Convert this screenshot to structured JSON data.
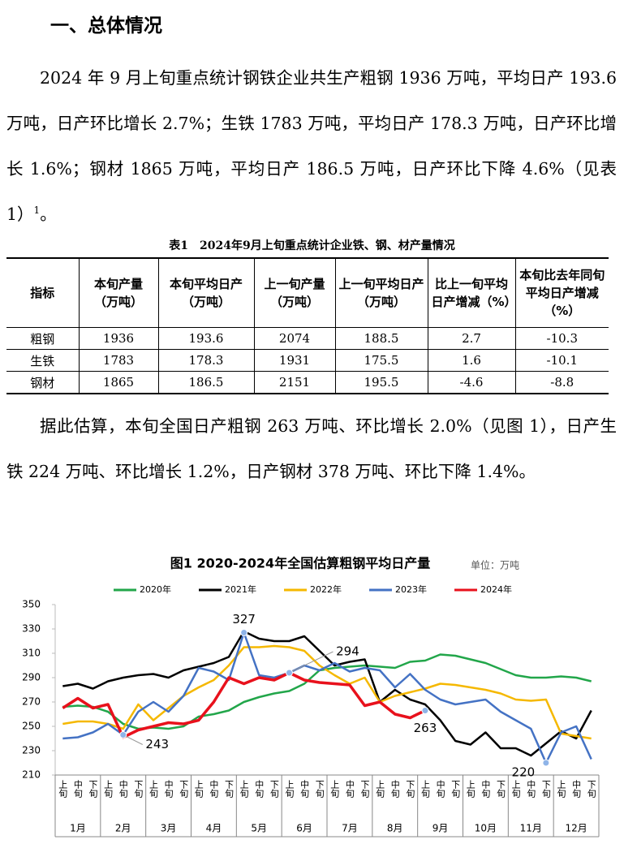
{
  "heading": "一、总体情况",
  "paragraph1": {
    "text": "2024 年 9 月上旬重点统计钢铁企业共生产粗钢 1936 万吨，平均日产 193.6 万吨，日产环比增长 2.7%；生铁 1783 万吨，平均日产 178.3 万吨，日产环比增长 1.6%；钢材 1865 万吨，平均日产 186.5 万吨，日产环比下降 4.6%（见表 1）",
    "footnote": "1",
    "end": "。"
  },
  "table": {
    "caption": "表1　2024年9月上旬重点统计企业铁、钢、材产量情况",
    "header": [
      "指标",
      "本旬产量（万吨）",
      "本旬平均日产（万吨）",
      "上一旬产量（万吨）",
      "上一旬平均日产（万吨）",
      "比上一旬平均日产增减（%）",
      "本旬比去年同旬平均日产增减（%）"
    ],
    "rows": [
      [
        "粗钢",
        "1936",
        "193.6",
        "2074",
        "188.5",
        "2.7",
        "-10.3"
      ],
      [
        "生铁",
        "1783",
        "178.3",
        "1931",
        "175.5",
        "1.6",
        "-10.1"
      ],
      [
        "钢材",
        "1865",
        "186.5",
        "2151",
        "195.5",
        "-4.6",
        "-8.8"
      ]
    ]
  },
  "paragraph2": "据此估算，本旬全国日产粗钢 263 万吨、环比增长 2.0%（见图 1），日产生铁 224 万吨、环比增长 1.2%，日产钢材 378 万吨、环比下降 1.4%。",
  "chart_data": {
    "type": "line",
    "title": "图1 2020-2024年全国估算粗钢平均日产量",
    "unit": "单位：万吨",
    "categories": [
      "上旬",
      "中旬",
      "下旬",
      "上旬",
      "中旬",
      "下旬",
      "上旬",
      "中旬",
      "下旬",
      "上旬",
      "中旬",
      "下旬",
      "上旬",
      "中旬",
      "下旬",
      "上旬",
      "中旬",
      "下旬",
      "上旬",
      "中旬",
      "下旬",
      "上旬",
      "中旬",
      "下旬",
      "上旬",
      "中旬",
      "下旬",
      "上旬",
      "中旬",
      "下旬",
      "上旬",
      "中旬",
      "下旬",
      "上旬",
      "中旬",
      "下旬"
    ],
    "months": [
      "1月",
      "2月",
      "3月",
      "4月",
      "5月",
      "6月",
      "7月",
      "8月",
      "9月",
      "10月",
      "11月",
      "12月"
    ],
    "ylim": [
      210,
      350
    ],
    "yticks": [
      210,
      230,
      250,
      270,
      290,
      310,
      330,
      350
    ],
    "grid": false,
    "series": [
      {
        "name": "2020年",
        "color": "#22a64a",
        "values": [
          266,
          267,
          266,
          262,
          252,
          248,
          249,
          248,
          250,
          258,
          260,
          263,
          270,
          274,
          277,
          279,
          285,
          296,
          298,
          299,
          300,
          299,
          298,
          303,
          304,
          309,
          308,
          305,
          302,
          297,
          292,
          290,
          290,
          291,
          290,
          287
        ]
      },
      {
        "name": "2021年",
        "color": "#000000",
        "values": [
          283,
          285,
          281,
          287,
          290,
          292,
          293,
          290,
          296,
          299,
          302,
          307,
          328,
          322,
          320,
          320,
          324,
          312,
          300,
          303,
          305,
          270,
          280,
          272,
          268,
          255,
          238,
          235,
          245,
          232,
          232,
          226,
          236,
          246,
          240,
          263
        ]
      },
      {
        "name": "2022年",
        "color": "#f5b800",
        "values": [
          252,
          254,
          254,
          252,
          248,
          268,
          255,
          265,
          275,
          282,
          288,
          300,
          315,
          315,
          316,
          315,
          312,
          300,
          292,
          285,
          290,
          270,
          275,
          278,
          281,
          285,
          284,
          282,
          280,
          277,
          272,
          271,
          272,
          244,
          242,
          240
        ]
      },
      {
        "name": "2023年",
        "color": "#4472c4",
        "values": [
          240,
          241,
          245,
          252,
          243,
          262,
          270,
          262,
          275,
          298,
          295,
          288,
          327,
          292,
          290,
          294,
          300,
          296,
          302,
          295,
          298,
          296,
          282,
          293,
          280,
          272,
          268,
          270,
          272,
          262,
          255,
          248,
          220,
          245,
          250,
          223
        ]
      },
      {
        "name": "2024年",
        "color": "#e8111c",
        "values": [
          265,
          273,
          265,
          268,
          241,
          247,
          250,
          253,
          252,
          255,
          270,
          290,
          285,
          290,
          288,
          294,
          288,
          286,
          285,
          284,
          267,
          270,
          260,
          257,
          263,
          null,
          null,
          null,
          null,
          null,
          null,
          null,
          null,
          null,
          null,
          null
        ]
      }
    ]
  }
}
